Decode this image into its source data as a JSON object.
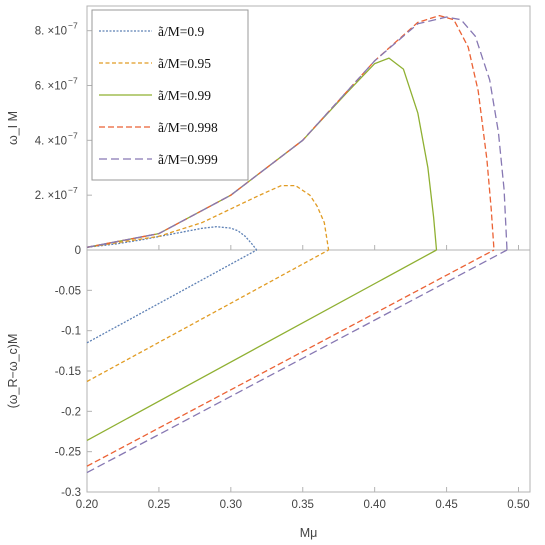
{
  "chart_data": {
    "type": "line",
    "panels": [
      {
        "id": "top",
        "ylabel": "ω_I M",
        "ylim": [
          0,
          8.9e-07
        ],
        "yticks": [
          {
            "value": 0,
            "label": "0"
          },
          {
            "value": 2e-07,
            "mant": "2.",
            "base": "×10",
            "exp": "−7"
          },
          {
            "value": 4e-07,
            "mant": "4.",
            "base": "×10",
            "exp": "−7"
          },
          {
            "value": 6e-07,
            "mant": "6.",
            "base": "×10",
            "exp": "−7"
          },
          {
            "value": 8e-07,
            "mant": "8.",
            "base": "×10",
            "exp": "−7"
          }
        ]
      },
      {
        "id": "bottom",
        "ylabel": "(ω_R−ω_c)M",
        "ylim": [
          -0.3,
          0
        ],
        "yticks": [
          {
            "value": -0.05,
            "label": "-0.05"
          },
          {
            "value": -0.1,
            "label": "-0.1"
          },
          {
            "value": -0.15,
            "label": "-0.15"
          },
          {
            "value": -0.2,
            "label": "-0.2"
          },
          {
            "value": -0.25,
            "label": "-0.25"
          },
          {
            "value": -0.3,
            "label": "-0.3"
          }
        ]
      }
    ],
    "xlabel": "Mμ",
    "xlim": [
      0.2,
      0.508
    ],
    "xticks": [
      0.2,
      0.25,
      0.3,
      0.35,
      0.4,
      0.45,
      0.5
    ],
    "xtick_labels": [
      "0.20",
      "0.25",
      "0.30",
      "0.35",
      "0.40",
      "0.45",
      "0.50"
    ],
    "legend_position": "top-left",
    "series": [
      {
        "name": "ã/M=0.9",
        "color": "#5e81b5",
        "dash": "2,1.5",
        "top": {
          "x": [
            0.2,
            0.22,
            0.24,
            0.26,
            0.28,
            0.29,
            0.3,
            0.305,
            0.31,
            0.315,
            0.318
          ],
          "y": [
            1e-08,
            2.2e-08,
            3.9e-08,
            5.9e-08,
            7.9e-08,
            8.5e-08,
            8e-08,
            7e-08,
            5e-08,
            2e-08,
            0
          ]
        },
        "bottom": {
          "x": [
            0.2,
            0.318
          ],
          "y": [
            -0.115,
            0
          ]
        }
      },
      {
        "name": "ã/M=0.95",
        "color": "#e19c24",
        "dash": "4,2.5",
        "top": {
          "x": [
            0.2,
            0.25,
            0.28,
            0.3,
            0.32,
            0.335,
            0.345,
            0.355,
            0.36,
            0.365,
            0.368
          ],
          "y": [
            1e-08,
            5e-08,
            1e-07,
            1.5e-07,
            2e-07,
            2.35e-07,
            2.35e-07,
            2e-07,
            1.6e-07,
            1e-07,
            0
          ]
        },
        "bottom": {
          "x": [
            0.2,
            0.368
          ],
          "y": [
            -0.163,
            0
          ]
        }
      },
      {
        "name": "ã/M=0.99",
        "color": "#8fb032",
        "dash": "",
        "top": {
          "x": [
            0.2,
            0.25,
            0.3,
            0.35,
            0.38,
            0.4,
            0.41,
            0.42,
            0.43,
            0.437,
            0.441,
            0.443
          ],
          "y": [
            1e-08,
            6e-08,
            2e-07,
            4e-07,
            5.7e-07,
            6.8e-07,
            7e-07,
            6.6e-07,
            5e-07,
            3e-07,
            1.2e-07,
            0
          ]
        },
        "bottom": {
          "x": [
            0.2,
            0.443
          ],
          "y": [
            -0.236,
            0
          ]
        }
      },
      {
        "name": "ã/M=0.998",
        "color": "#eb6235",
        "dash": "6,3",
        "top": {
          "x": [
            0.2,
            0.25,
            0.3,
            0.35,
            0.4,
            0.43,
            0.445,
            0.455,
            0.465,
            0.472,
            0.478,
            0.481,
            0.483
          ],
          "y": [
            1e-08,
            6e-08,
            2e-07,
            4e-07,
            6.9e-07,
            8.3e-07,
            8.55e-07,
            8.4e-07,
            7.4e-07,
            5.8e-07,
            3.3e-07,
            1.5e-07,
            0
          ]
        },
        "bottom": {
          "x": [
            0.2,
            0.483
          ],
          "y": [
            -0.268,
            0
          ]
        }
      },
      {
        "name": "ã/M=0.999",
        "color": "#8778b3",
        "dash": "8,4",
        "top": {
          "x": [
            0.2,
            0.25,
            0.3,
            0.35,
            0.4,
            0.43,
            0.45,
            0.46,
            0.47,
            0.48,
            0.486,
            0.49,
            0.492
          ],
          "y": [
            1e-08,
            6e-08,
            2e-07,
            4e-07,
            6.9e-07,
            8.25e-07,
            8.5e-07,
            8.4e-07,
            7.8e-07,
            6.2e-07,
            4.3e-07,
            2.2e-07,
            0
          ]
        },
        "bottom": {
          "x": [
            0.2,
            0.492
          ],
          "y": [
            -0.276,
            0
          ]
        }
      }
    ]
  }
}
